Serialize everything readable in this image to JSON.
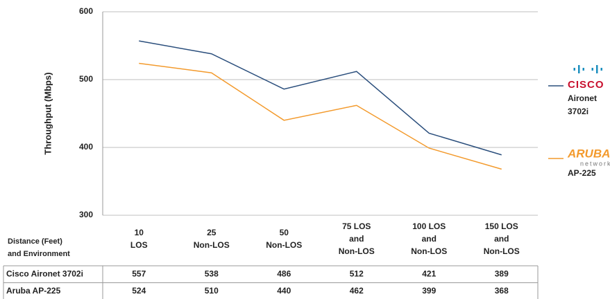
{
  "chart_data": {
    "type": "line",
    "y_label": "Throughput (Mbps)",
    "categories": [
      [
        "10",
        "LOS"
      ],
      [
        "25",
        "Non-LOS"
      ],
      [
        "50",
        "Non-LOS"
      ],
      [
        "75 LOS",
        "and",
        "Non-LOS"
      ],
      [
        "100 LOS",
        "and",
        "Non-LOS"
      ],
      [
        "150 LOS",
        "and",
        "Non-LOS"
      ]
    ],
    "category_header": [
      "Distance (Feet)",
      "and Environment"
    ],
    "series": [
      {
        "name": "Cisco Aironet 3702i",
        "color": "#2a4e7c",
        "values": [
          557,
          538,
          486,
          512,
          421,
          389
        ],
        "legend_logo": "CISCO",
        "legend_label": [
          "Aironet",
          "3702i"
        ]
      },
      {
        "name": "Aruba AP-225",
        "color": "#f39a2c",
        "values": [
          524,
          510,
          440,
          462,
          399,
          368
        ],
        "legend_logo": "ARUBA",
        "legend_logo_sub": "networks",
        "legend_label": [
          "AP-225"
        ]
      }
    ],
    "ylim": [
      300,
      600
    ],
    "yticks": [
      300,
      400,
      500,
      600
    ],
    "grid": true
  }
}
